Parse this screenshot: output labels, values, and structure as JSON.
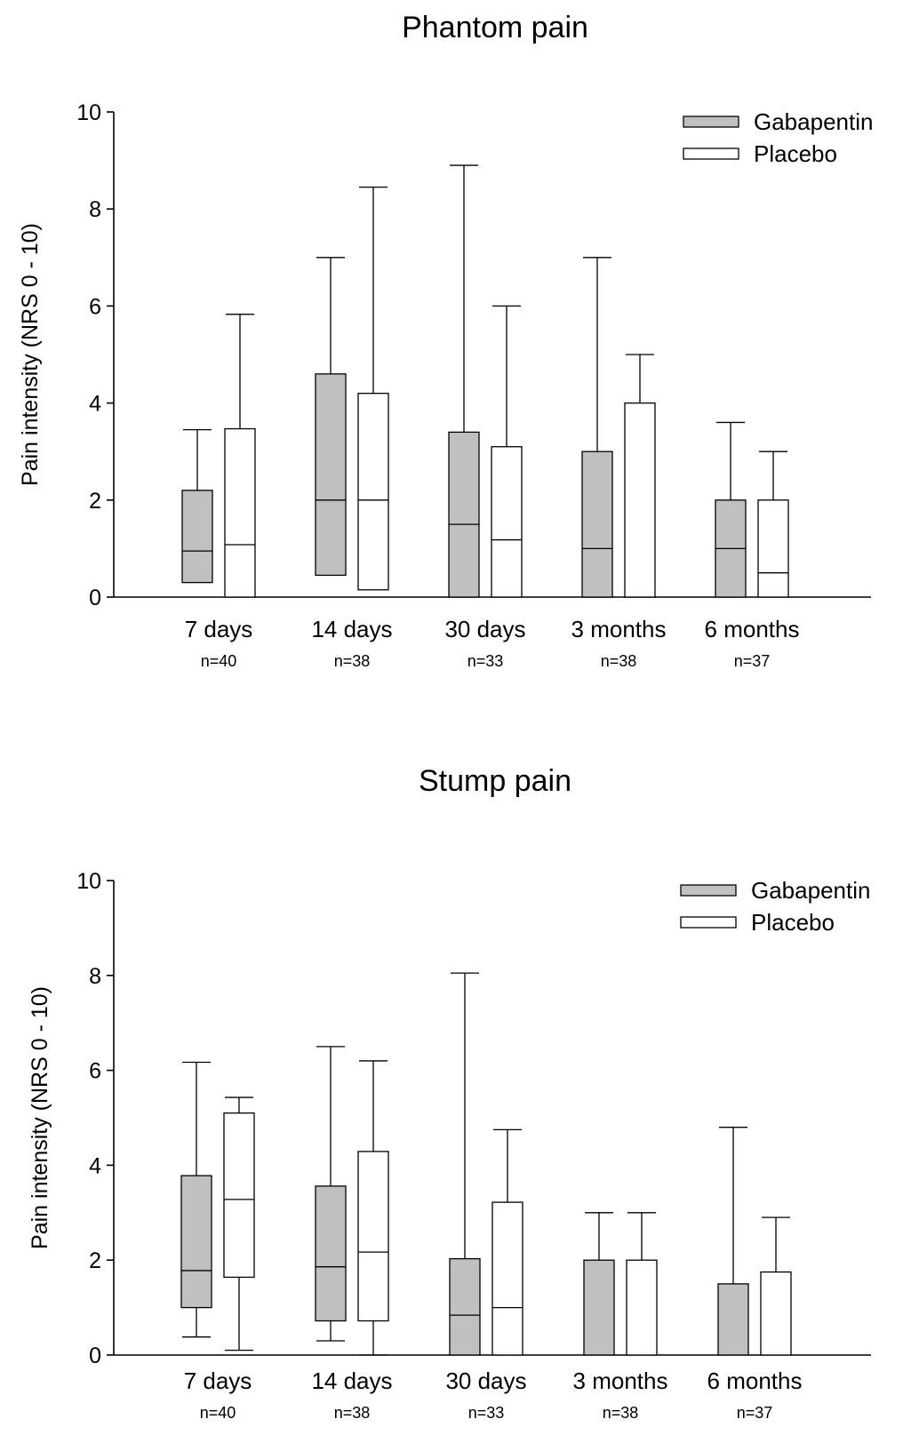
{
  "colors": {
    "gabapentin": "#c0c0c0",
    "placebo": "#ffffff",
    "line": "#000000"
  },
  "chart_data": [
    {
      "type": "box",
      "title": "Phantom pain",
      "xlabel": "",
      "ylabel": "Pain intensity (NRS 0 - 10)",
      "ylim": [
        0,
        10
      ],
      "yticks": [
        "0",
        "2",
        "4",
        "6",
        "8",
        "10"
      ],
      "legend_position": "top-right",
      "categories": [
        "7 days",
        "14 days",
        "30 days",
        "3 months",
        "6 months"
      ],
      "sample_sizes": [
        "n=40",
        "n=38",
        "n=33",
        "n=38",
        "n=37"
      ],
      "series": [
        {
          "name": "Gabapentin",
          "boxes": [
            {
              "whisker_low": 0.3,
              "q1": 0.3,
              "median": 0.95,
              "q3": 2.2,
              "whisker_high": 3.45
            },
            {
              "whisker_low": 0.45,
              "q1": 0.45,
              "median": 2.0,
              "q3": 4.6,
              "whisker_high": 7.0
            },
            {
              "whisker_low": 0,
              "q1": 0,
              "median": 1.5,
              "q3": 3.4,
              "whisker_high": 8.9
            },
            {
              "whisker_low": 0,
              "q1": 0,
              "median": 1.0,
              "q3": 3.0,
              "whisker_high": 7.0
            },
            {
              "whisker_low": 0,
              "q1": 0,
              "median": 1.0,
              "q3": 2.0,
              "whisker_high": 3.6
            }
          ]
        },
        {
          "name": "Placebo",
          "boxes": [
            {
              "whisker_low": 0,
              "q1": 0,
              "median": 1.08,
              "q3": 3.47,
              "whisker_high": 5.83
            },
            {
              "whisker_low": 0.15,
              "q1": 0.15,
              "median": 2.0,
              "q3": 4.2,
              "whisker_high": 8.45
            },
            {
              "whisker_low": 0,
              "q1": 0,
              "median": 1.18,
              "q3": 3.1,
              "whisker_high": 6.0
            },
            {
              "whisker_low": 0,
              "q1": 0,
              "median": 4.0,
              "q3": 4.0,
              "whisker_high": 5.0
            },
            {
              "whisker_low": 0,
              "q1": 0,
              "median": 0.5,
              "q3": 2.0,
              "whisker_high": 3.0
            }
          ]
        }
      ]
    },
    {
      "type": "box",
      "title": "Stump pain",
      "xlabel": "",
      "ylabel": "Pain intensity (NRS 0 - 10)",
      "ylim": [
        0,
        10
      ],
      "yticks": [
        "0",
        "2",
        "4",
        "6",
        "8",
        "10"
      ],
      "legend_position": "top-right",
      "categories": [
        "7 days",
        "14 days",
        "30 days",
        "3 months",
        "6 months"
      ],
      "sample_sizes": [
        "n=40",
        "n=38",
        "n=33",
        "n=38",
        "n=37"
      ],
      "series": [
        {
          "name": "Gabapentin",
          "boxes": [
            {
              "whisker_low": 0.38,
              "q1": 1.0,
              "median": 1.78,
              "q3": 3.78,
              "whisker_high": 6.17
            },
            {
              "whisker_low": 0.3,
              "q1": 0.72,
              "median": 1.86,
              "q3": 3.56,
              "whisker_high": 6.5
            },
            {
              "whisker_low": 0,
              "q1": 0,
              "median": 0.84,
              "q3": 2.03,
              "whisker_high": 8.05
            },
            {
              "whisker_low": 0,
              "q1": 0,
              "median": 2.0,
              "q3": 2.0,
              "whisker_high": 3.0
            },
            {
              "whisker_low": 0,
              "q1": 0,
              "median": 1.5,
              "q3": 1.5,
              "whisker_high": 4.8
            }
          ]
        },
        {
          "name": "Placebo",
          "boxes": [
            {
              "whisker_low": 0.1,
              "q1": 1.64,
              "median": 3.28,
              "q3": 5.1,
              "whisker_high": 5.43
            },
            {
              "whisker_low": 0,
              "q1": 0.72,
              "median": 2.17,
              "q3": 4.29,
              "whisker_high": 6.2
            },
            {
              "whisker_low": 0,
              "q1": 0,
              "median": 1.0,
              "q3": 3.22,
              "whisker_high": 4.75
            },
            {
              "whisker_low": 0,
              "q1": 0,
              "median": 2.0,
              "q3": 2.0,
              "whisker_high": 3.0
            },
            {
              "whisker_low": 0,
              "q1": 0,
              "median": 1.75,
              "q3": 1.75,
              "whisker_high": 2.9
            }
          ]
        }
      ]
    }
  ]
}
